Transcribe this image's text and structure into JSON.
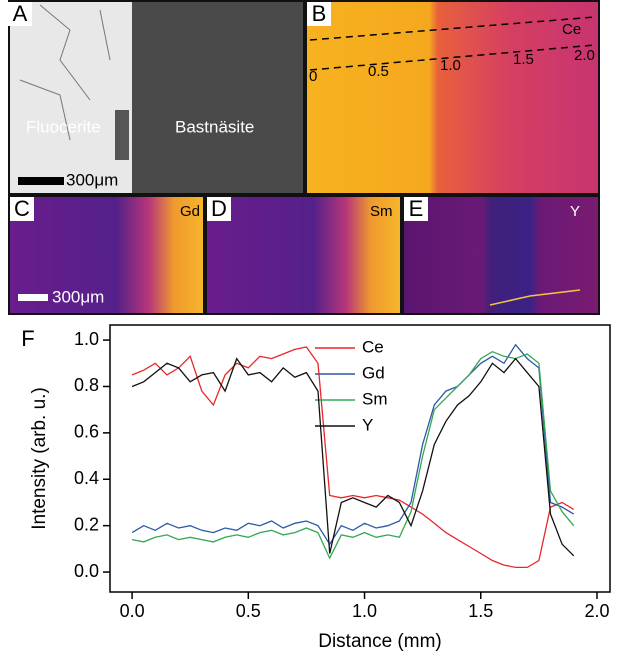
{
  "panels": {
    "A": {
      "label": "A",
      "left_text": "Fluocerite",
      "right_text": "Bastnäsite",
      "scale": "300μm"
    },
    "B": {
      "label": "B",
      "element": "Ce",
      "distances": [
        "0",
        "0.5",
        "1.0",
        "1.5",
        "2.0"
      ]
    },
    "C": {
      "label": "C",
      "element": "Gd",
      "scale": "300μm"
    },
    "D": {
      "label": "D",
      "element": "Sm"
    },
    "E": {
      "label": "E",
      "element": "Y"
    }
  },
  "chart_data": {
    "type": "line",
    "panel_label": "F",
    "x_label": "Distance (mm)",
    "y_label": "Intensity (arb. u.)",
    "x": [
      0,
      0.05,
      0.1,
      0.15,
      0.2,
      0.25,
      0.3,
      0.35,
      0.4,
      0.45,
      0.5,
      0.55,
      0.6,
      0.65,
      0.7,
      0.75,
      0.8,
      0.85,
      0.9,
      0.95,
      1.0,
      1.05,
      1.1,
      1.15,
      1.2,
      1.25,
      1.3,
      1.35,
      1.4,
      1.45,
      1.5,
      1.55,
      1.6,
      1.65,
      1.7,
      1.75,
      1.8,
      1.85,
      1.9
    ],
    "series": [
      {
        "name": "Ce",
        "color": "#e8262a",
        "values": [
          0.85,
          0.87,
          0.9,
          0.85,
          0.88,
          0.93,
          0.78,
          0.72,
          0.85,
          0.9,
          0.88,
          0.93,
          0.92,
          0.94,
          0.96,
          0.97,
          0.9,
          0.33,
          0.32,
          0.33,
          0.32,
          0.33,
          0.32,
          0.31,
          0.28,
          0.25,
          0.21,
          0.17,
          0.14,
          0.11,
          0.08,
          0.05,
          0.03,
          0.02,
          0.02,
          0.05,
          0.28,
          0.3,
          0.27
        ]
      },
      {
        "name": "Gd",
        "color": "#2d57a8",
        "values": [
          0.17,
          0.2,
          0.18,
          0.21,
          0.19,
          0.2,
          0.18,
          0.17,
          0.19,
          0.18,
          0.21,
          0.2,
          0.22,
          0.19,
          0.21,
          0.22,
          0.2,
          0.12,
          0.2,
          0.18,
          0.21,
          0.19,
          0.2,
          0.22,
          0.3,
          0.55,
          0.72,
          0.78,
          0.8,
          0.85,
          0.9,
          0.93,
          0.9,
          0.98,
          0.92,
          0.88,
          0.3,
          0.28,
          0.25
        ]
      },
      {
        "name": "Sm",
        "color": "#32a852",
        "values": [
          0.14,
          0.13,
          0.15,
          0.16,
          0.14,
          0.15,
          0.14,
          0.13,
          0.15,
          0.16,
          0.15,
          0.17,
          0.18,
          0.16,
          0.17,
          0.19,
          0.17,
          0.06,
          0.16,
          0.15,
          0.17,
          0.15,
          0.16,
          0.15,
          0.26,
          0.5,
          0.7,
          0.75,
          0.8,
          0.85,
          0.92,
          0.95,
          0.93,
          0.92,
          0.94,
          0.9,
          0.35,
          0.26,
          0.2
        ]
      },
      {
        "name": "Y",
        "color": "#111111",
        "values": [
          0.8,
          0.82,
          0.86,
          0.9,
          0.88,
          0.82,
          0.85,
          0.86,
          0.78,
          0.92,
          0.85,
          0.86,
          0.82,
          0.88,
          0.84,
          0.86,
          0.78,
          0.08,
          0.3,
          0.32,
          0.3,
          0.28,
          0.33,
          0.3,
          0.2,
          0.35,
          0.55,
          0.65,
          0.72,
          0.76,
          0.82,
          0.9,
          0.86,
          0.92,
          0.86,
          0.8,
          0.25,
          0.12,
          0.07
        ]
      }
    ],
    "xlim": [
      -0.095,
      2.056
    ],
    "ylim": [
      -0.086,
      1.065
    ],
    "xticks": [
      {
        "value": 0,
        "label": "0.0"
      },
      0.5,
      {
        "value": 1,
        "label": "1.0"
      },
      1.5,
      {
        "value": 2,
        "label": "2.0"
      }
    ],
    "yticks": [
      {
        "value": 0,
        "label": "0.0"
      },
      0.2,
      0.4,
      0.6,
      0.8,
      {
        "value": 1,
        "label": "1.0"
      }
    ]
  }
}
